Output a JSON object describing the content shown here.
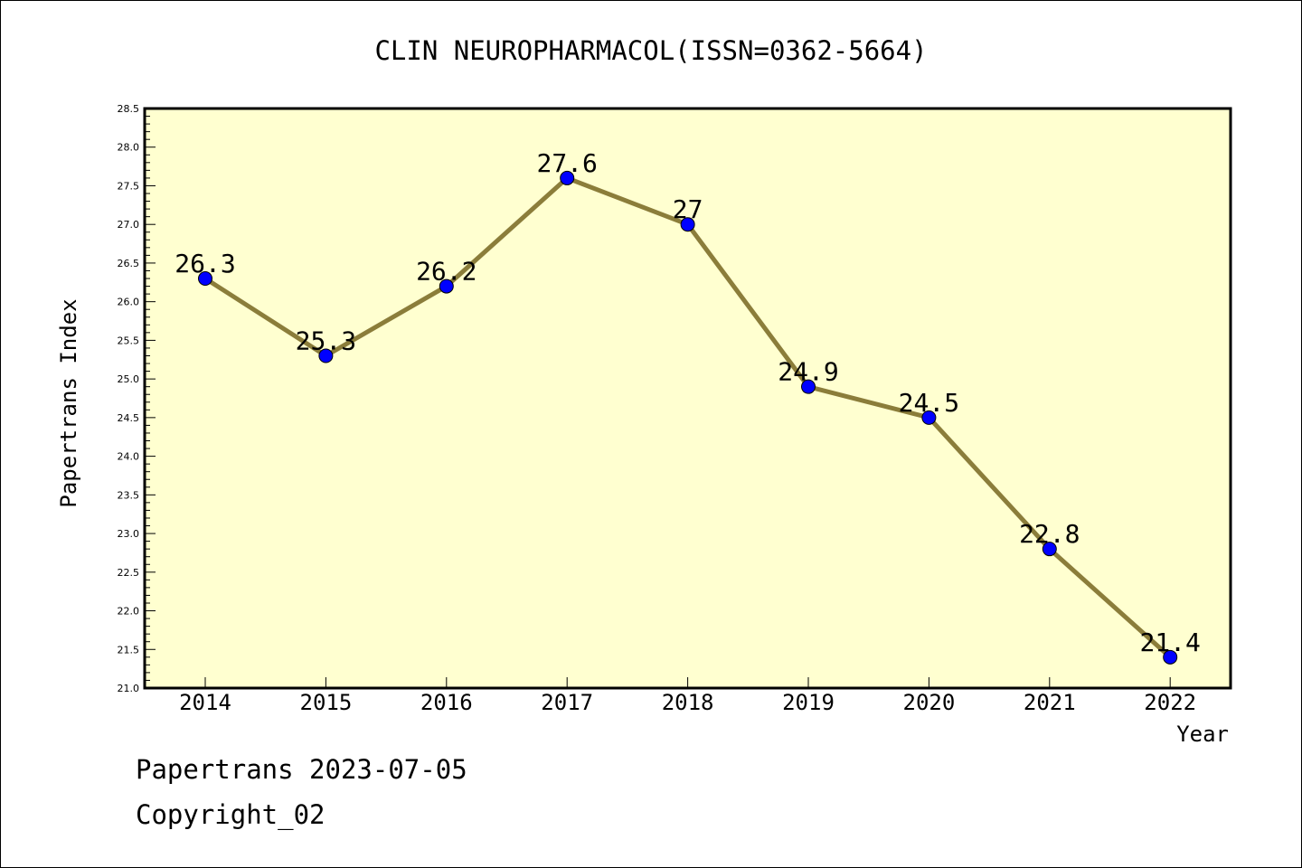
{
  "chart_data": {
    "type": "line",
    "title": "CLIN NEUROPHARMACOL(ISSN=0362-5664)",
    "xlabel": "Year",
    "ylabel": "Papertrans Index",
    "x": [
      "2014",
      "2015",
      "2016",
      "2017",
      "2018",
      "2019",
      "2020",
      "2021",
      "2022"
    ],
    "values": [
      26.3,
      25.3,
      26.2,
      27.6,
      27,
      24.9,
      24.5,
      22.8,
      21.4
    ],
    "data_labels": [
      "26.3",
      "25.3",
      "26.2",
      "27.6",
      "27",
      "24.9",
      "24.5",
      "22.8",
      "21.4"
    ],
    "ylim": [
      21.0,
      28.5
    ],
    "yticks": [
      "21.0",
      "21.5",
      "22.0",
      "22.5",
      "23.0",
      "23.5",
      "24.0",
      "24.5",
      "25.0",
      "25.5",
      "26.0",
      "26.5",
      "27.0",
      "27.5",
      "28.0",
      "28.5"
    ],
    "grid": false,
    "legend": "none",
    "colors": {
      "plot_background": "#ffffd0",
      "line": "#8b7d3a",
      "marker": "#0000ff"
    }
  },
  "footer": {
    "date_line": "Papertrans 2023-07-05",
    "copyright": "Copyright_02"
  }
}
